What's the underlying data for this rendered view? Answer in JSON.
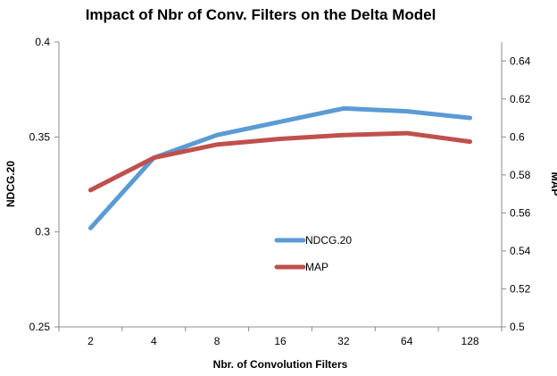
{
  "chart_data": {
    "type": "line",
    "title": "Impact of Nbr of Conv. Filters on the Delta Model",
    "xlabel": "Nbr. of Convolution Filters",
    "ylabel_left": "NDCG.20",
    "ylabel_right": "MAP",
    "categories": [
      "2",
      "4",
      "8",
      "16",
      "32",
      "64",
      "128"
    ],
    "y_left": {
      "min": 0.25,
      "max": 0.4,
      "ticks": [
        0.25,
        0.3,
        0.35,
        0.4
      ],
      "tick_labels": [
        "0.25",
        "0.3",
        "0.35",
        "0.4"
      ]
    },
    "y_right": {
      "min": 0.5,
      "max": 0.65,
      "ticks": [
        0.5,
        0.52,
        0.54,
        0.56,
        0.58,
        0.6,
        0.62,
        0.64
      ],
      "tick_labels": [
        "0.5",
        "0.52",
        "0.54",
        "0.56",
        "0.58",
        "0.6",
        "0.62",
        "0.64"
      ]
    },
    "series": [
      {
        "name": "NDCG.20",
        "axis": "left",
        "color": "#5b9bd5",
        "values": [
          0.302,
          0.339,
          0.351,
          0.358,
          0.365,
          0.3635,
          0.36
        ]
      },
      {
        "name": "MAP",
        "axis": "right",
        "color": "#c0504d",
        "values": [
          0.572,
          0.589,
          0.596,
          0.599,
          0.601,
          0.602,
          0.5975
        ]
      }
    ],
    "grid": false,
    "legend_position": "inside-bottom-center"
  }
}
